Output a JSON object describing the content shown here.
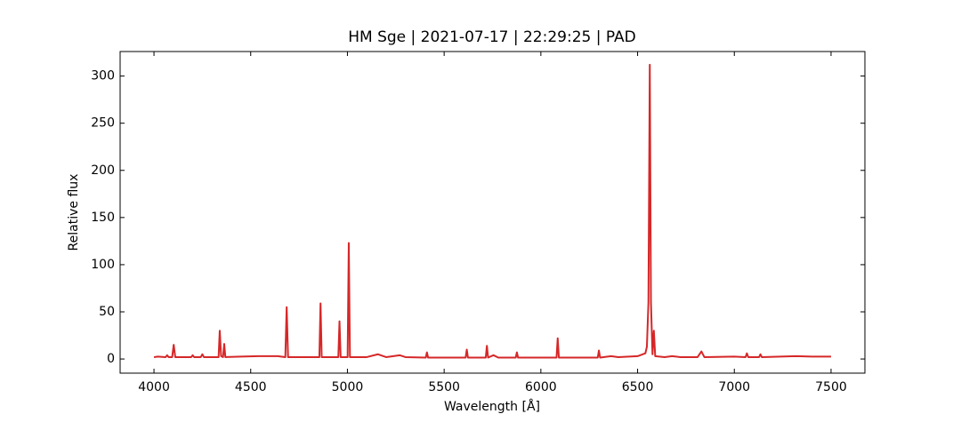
{
  "chart_data": {
    "type": "line",
    "title": "HM Sge | 2021-07-17 | 22:29:25 | PAD",
    "xlabel": "Wavelength [Å]",
    "ylabel": "Relative flux",
    "color": "#d62728",
    "x": [
      4000,
      4020,
      4060,
      4068,
      4076,
      4094,
      4102,
      4110,
      4192,
      4200,
      4208,
      4242,
      4250,
      4258,
      4334,
      4340,
      4347,
      4357,
      4363,
      4369,
      4450,
      4540,
      4640,
      4679,
      4686,
      4693,
      4780,
      4855,
      4861,
      4867,
      4953,
      4959,
      4965,
      5001,
      5007,
      5013,
      5100,
      5158,
      5200,
      5270,
      5300,
      5405,
      5411,
      5417,
      5611,
      5617,
      5623,
      5715,
      5721,
      5727,
      5755,
      5780,
      5870,
      5876,
      5882,
      6081,
      6087,
      6093,
      6294,
      6300,
      6306,
      6363,
      6400,
      6500,
      6540,
      6548,
      6556,
      6563,
      6569,
      6577,
      6584,
      6591,
      6640,
      6678,
      6720,
      6810,
      6830,
      6845,
      7000,
      7058,
      7065,
      7072,
      7128,
      7135,
      7142,
      7320,
      7400,
      7500
    ],
    "values": [
      2,
      2.5,
      2,
      4,
      2,
      2,
      15,
      2,
      2,
      4,
      2,
      2,
      5,
      2,
      2,
      30,
      3,
      2,
      16,
      2,
      2.5,
      3,
      3,
      2,
      55,
      2,
      2,
      2,
      59,
      2,
      2,
      40,
      2,
      2,
      123,
      2,
      2,
      5,
      2,
      4,
      2,
      1.5,
      7,
      1.5,
      1.5,
      10,
      1.5,
      1.5,
      14,
      1.5,
      4,
      1.5,
      1.5,
      7,
      1.5,
      1.5,
      22,
      1.5,
      1.5,
      9,
      1.5,
      3,
      2,
      3,
      6,
      13,
      60,
      312,
      60,
      5,
      30,
      3,
      2,
      3,
      2,
      2,
      8,
      2,
      2.5,
      2,
      6,
      2,
      2,
      5,
      2,
      3,
      2.5,
      2.5
    ],
    "xlim": [
      3825,
      7675
    ],
    "ylim": [
      -15,
      326
    ],
    "xticks": [
      4000,
      4500,
      5000,
      5500,
      6000,
      6500,
      7000,
      7500
    ],
    "yticks": [
      0,
      50,
      100,
      150,
      200,
      250,
      300
    ]
  }
}
